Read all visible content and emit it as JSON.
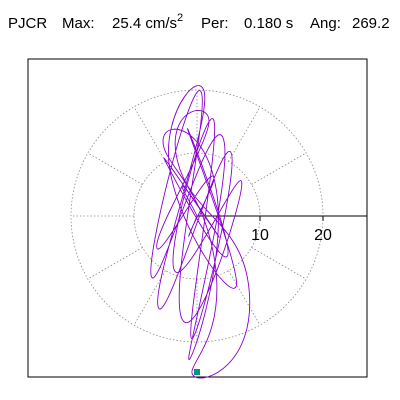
{
  "header": {
    "station": "PJCR",
    "max_label": "Max:",
    "max_value": "25.4 cm/s",
    "max_exp": "2",
    "per_label": "Per:",
    "per_value": "0.180 s",
    "ang_label": "Ang:",
    "ang_value": "269.2"
  },
  "colors": {
    "trace": "#8800cc",
    "grid": "#888888",
    "marker": "#009977",
    "frame": "#000000"
  },
  "chart_data": {
    "type": "line",
    "coordinate_system": "polar",
    "units": "cm/s2",
    "max_value": 25.4,
    "period_s": 0.18,
    "angle_deg": 269.2,
    "radial_rings": [
      10,
      20
    ],
    "radial_tick_labels": [
      "10",
      "20"
    ],
    "angular_divisions": 12,
    "grid": true,
    "peak_point": {
      "x": 0.0,
      "y": -25.4,
      "marker": "square"
    },
    "series": [
      {
        "color": "#8800cc",
        "x": [
          0.0,
          -2.1,
          3.4,
          -5.2,
          4.8,
          -1.5,
          6.2,
          -4.3,
          1.2,
          -6.1,
          5.3,
          -0.9,
          2.7,
          -3.6,
          7.1,
          -2.4,
          0.6,
          -7.2,
          4.1,
          -1.3,
          3.2,
          -5.4,
          2.9,
          -0.5,
          8.3,
          -3.1,
          1.8,
          -6.4,
          2.3,
          -1.1,
          0.0
        ],
        "y": [
          0.0,
          4.6,
          -3.2,
          9.1,
          -6.4,
          13.8,
          -11.2,
          7.3,
          17.9,
          -14.6,
          10.2,
          -19.4,
          15.1,
          -8.6,
          5.4,
          -16.3,
          19.8,
          -9.7,
          12.5,
          -22.4,
          3.1,
          11.9,
          -7.8,
          -25.4,
          -12.1,
          8.7,
          14.2,
          -4.9,
          6.3,
          -2.6,
          0.0
        ]
      }
    ]
  }
}
